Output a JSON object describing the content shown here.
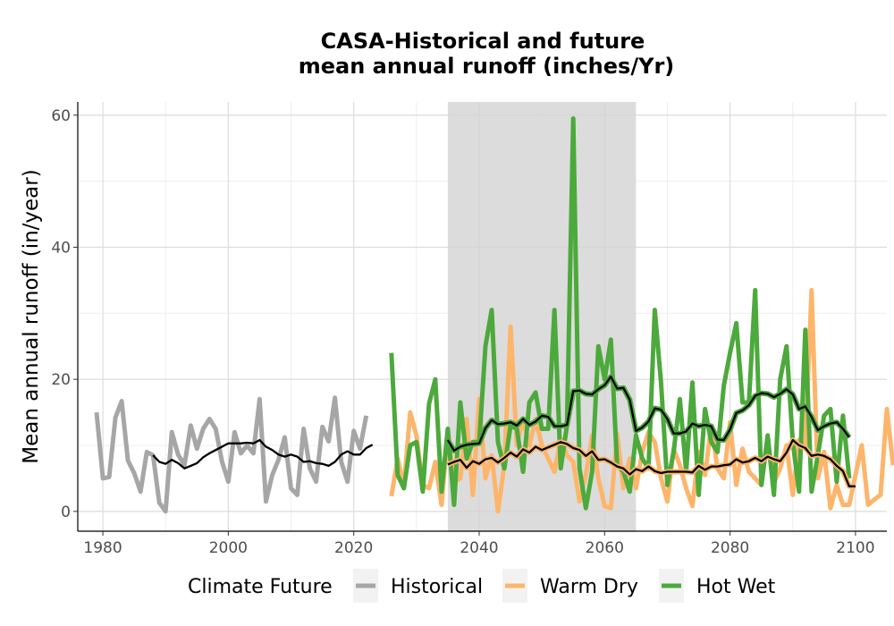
{
  "chart_data": {
    "type": "line",
    "title_line1": "CASA-Historical and future",
    "title_line2": "mean annual runoff (inches/Yr)",
    "xlabel": "",
    "ylabel": "Mean annual runoff (in/year)",
    "xlim": [
      1976,
      2105
    ],
    "ylim": [
      -3,
      62
    ],
    "x_ticks": [
      1980,
      2000,
      2020,
      2040,
      2060,
      2080,
      2100
    ],
    "y_ticks": [
      0,
      20,
      40,
      60
    ],
    "grid": true,
    "shaded_period": [
      2035,
      2065
    ],
    "legend": {
      "title": "Climate Future",
      "position": "bottom",
      "entries": [
        {
          "label": "Historical",
          "color": "#a6a6a6"
        },
        {
          "label": "Warm Dry",
          "color": "#fdb56b"
        },
        {
          "label": "Hot Wet",
          "color": "#4ca93c"
        }
      ]
    },
    "series": [
      {
        "name": "Historical",
        "color": "#a6a6a6",
        "x_start": 1979,
        "values": [
          15,
          5,
          5.2,
          14.2,
          16.7,
          7.7,
          5.8,
          3,
          9,
          8.5,
          1.3,
          0,
          12,
          8.6,
          7,
          13,
          9.5,
          12.5,
          14,
          12.5,
          7.5,
          4.5,
          12,
          8.8,
          10,
          8.8,
          17,
          1.5,
          5.5,
          7.8,
          11.2,
          3.5,
          2.5,
          12.5,
          6.5,
          4.5,
          12.8,
          10.6,
          17.2,
          7.5,
          4.5,
          12.2,
          9.5,
          14.5
        ]
      },
      {
        "name": "Historical smoothed",
        "color": "#000000",
        "x_start": 1988,
        "values": [
          8.5,
          7.5,
          7.2,
          7.8,
          7.3,
          6.5,
          6.9,
          7.3,
          8.2,
          8.8,
          9.3,
          9.8,
          10.3,
          10.3,
          10.3,
          10.4,
          10.3,
          10.8,
          9.8,
          9.3,
          8.6,
          8.3,
          8.6,
          8.3,
          7.5,
          7.6,
          7.3,
          7.2,
          6.9,
          7.5,
          8.6,
          9.1,
          8.6,
          8.6,
          9.6,
          10.1
        ]
      },
      {
        "name": "Warm Dry",
        "color": "#fdb56b",
        "x_start": 2026,
        "values": [
          2.3,
          8,
          3.8,
          15,
          11.5,
          4,
          3.5,
          7.5,
          1,
          12,
          4.5,
          5,
          14,
          2.5,
          17,
          5,
          8.5,
          0,
          7,
          28,
          10,
          14,
          10,
          14,
          10,
          8,
          6,
          11,
          8.5,
          7.5,
          1.5,
          5.5,
          11.5,
          5,
          0.8,
          0.5,
          11.7,
          3.5,
          8,
          3.5,
          9,
          12,
          10.5,
          5,
          1.5,
          9.5,
          7,
          3.5,
          0.8,
          9,
          5.5,
          13,
          6.5,
          5,
          13.5,
          4,
          9.5,
          6,
          5,
          4,
          11,
          4.3,
          6.5,
          10,
          2.5,
          10.8,
          10,
          33.5,
          5,
          9,
          0.5,
          4,
          1,
          1,
          5.5,
          10,
          1,
          1.8,
          2.5,
          15.5,
          7
        ]
      },
      {
        "name": "Hot Wet",
        "color": "#4ca93c",
        "x_start": 2026,
        "values": [
          24,
          5.5,
          3.5,
          10,
          10.5,
          3,
          16.3,
          20,
          3,
          12.5,
          1,
          16.5,
          8,
          10.5,
          10.5,
          25,
          30.5,
          10.5,
          6.5,
          13,
          12.5,
          6,
          16.5,
          18,
          12.5,
          12.5,
          30.5,
          6.5,
          13,
          59.5,
          6.5,
          0.5,
          6,
          25,
          20,
          26,
          7,
          6,
          3,
          11.5,
          8,
          6.5,
          30.5,
          19.5,
          4,
          9,
          17,
          6,
          19.5,
          2.5,
          15.5,
          10.5,
          9,
          19,
          24,
          28.5,
          16.5,
          16.5,
          33.5,
          4,
          11.5,
          2.5,
          20,
          25,
          10.5,
          3,
          27.5,
          3,
          8.5,
          14.5,
          15.5,
          4.5,
          14.5,
          5
        ]
      },
      {
        "name": "Warm Dry smoothed",
        "color": "#000000",
        "outline_color": "#fdb56b",
        "x_start": 2035,
        "values": [
          7.1,
          7.5,
          7.8,
          6.6,
          7.6,
          7.2,
          7.9,
          8.1,
          7.4,
          8.1,
          8.9,
          8.3,
          9.4,
          8.9,
          9.8,
          9.3,
          9.7,
          10.1,
          10.5,
          10.2,
          9.6,
          9.3,
          8.4,
          9.1,
          7.8,
          7.9,
          7.4,
          6.8,
          6.5,
          5.6,
          6.4,
          6.1,
          6.8,
          6.1,
          5.8,
          6.0,
          6.0,
          6.0,
          6.0,
          5.9,
          6.9,
          6.3,
          6.8,
          6.8,
          7.0,
          7.1,
          7.9,
          7.4,
          7.6,
          8.1,
          7.6,
          8.3,
          7.9,
          7.6,
          8.9,
          10.8,
          10.0,
          9.6,
          8.4,
          8.6,
          8.4,
          7.9,
          6.9,
          6.1,
          3.8,
          3.8
        ]
      },
      {
        "name": "Hot Wet smoothed",
        "color": "#000000",
        "outline_color": "#4ca93c",
        "x_start": 2035,
        "values": [
          10.8,
          9.2,
          9.8,
          10.1,
          10.2,
          10.3,
          12.6,
          13.8,
          13.2,
          13.3,
          13.5,
          13.0,
          14.0,
          13.1,
          13.6,
          14.5,
          14.3,
          12.9,
          12.9,
          13.1,
          18.2,
          18.3,
          17.8,
          17.7,
          18.5,
          19.1,
          20.4,
          18.6,
          18.7,
          16.9,
          12.2,
          12.7,
          13.6,
          15.6,
          15.4,
          14.0,
          11.8,
          11.8,
          12.1,
          13.3,
          12.9,
          13.1,
          12.9,
          10.9,
          10.8,
          12.4,
          14.9,
          15.3,
          16.1,
          17.5,
          17.9,
          17.8,
          17.3,
          17.8,
          18.5,
          17.7,
          15.5,
          15.9,
          14.3,
          12.3,
          12.9,
          13.3,
          13.5,
          12.5,
          11.2
        ]
      }
    ]
  }
}
